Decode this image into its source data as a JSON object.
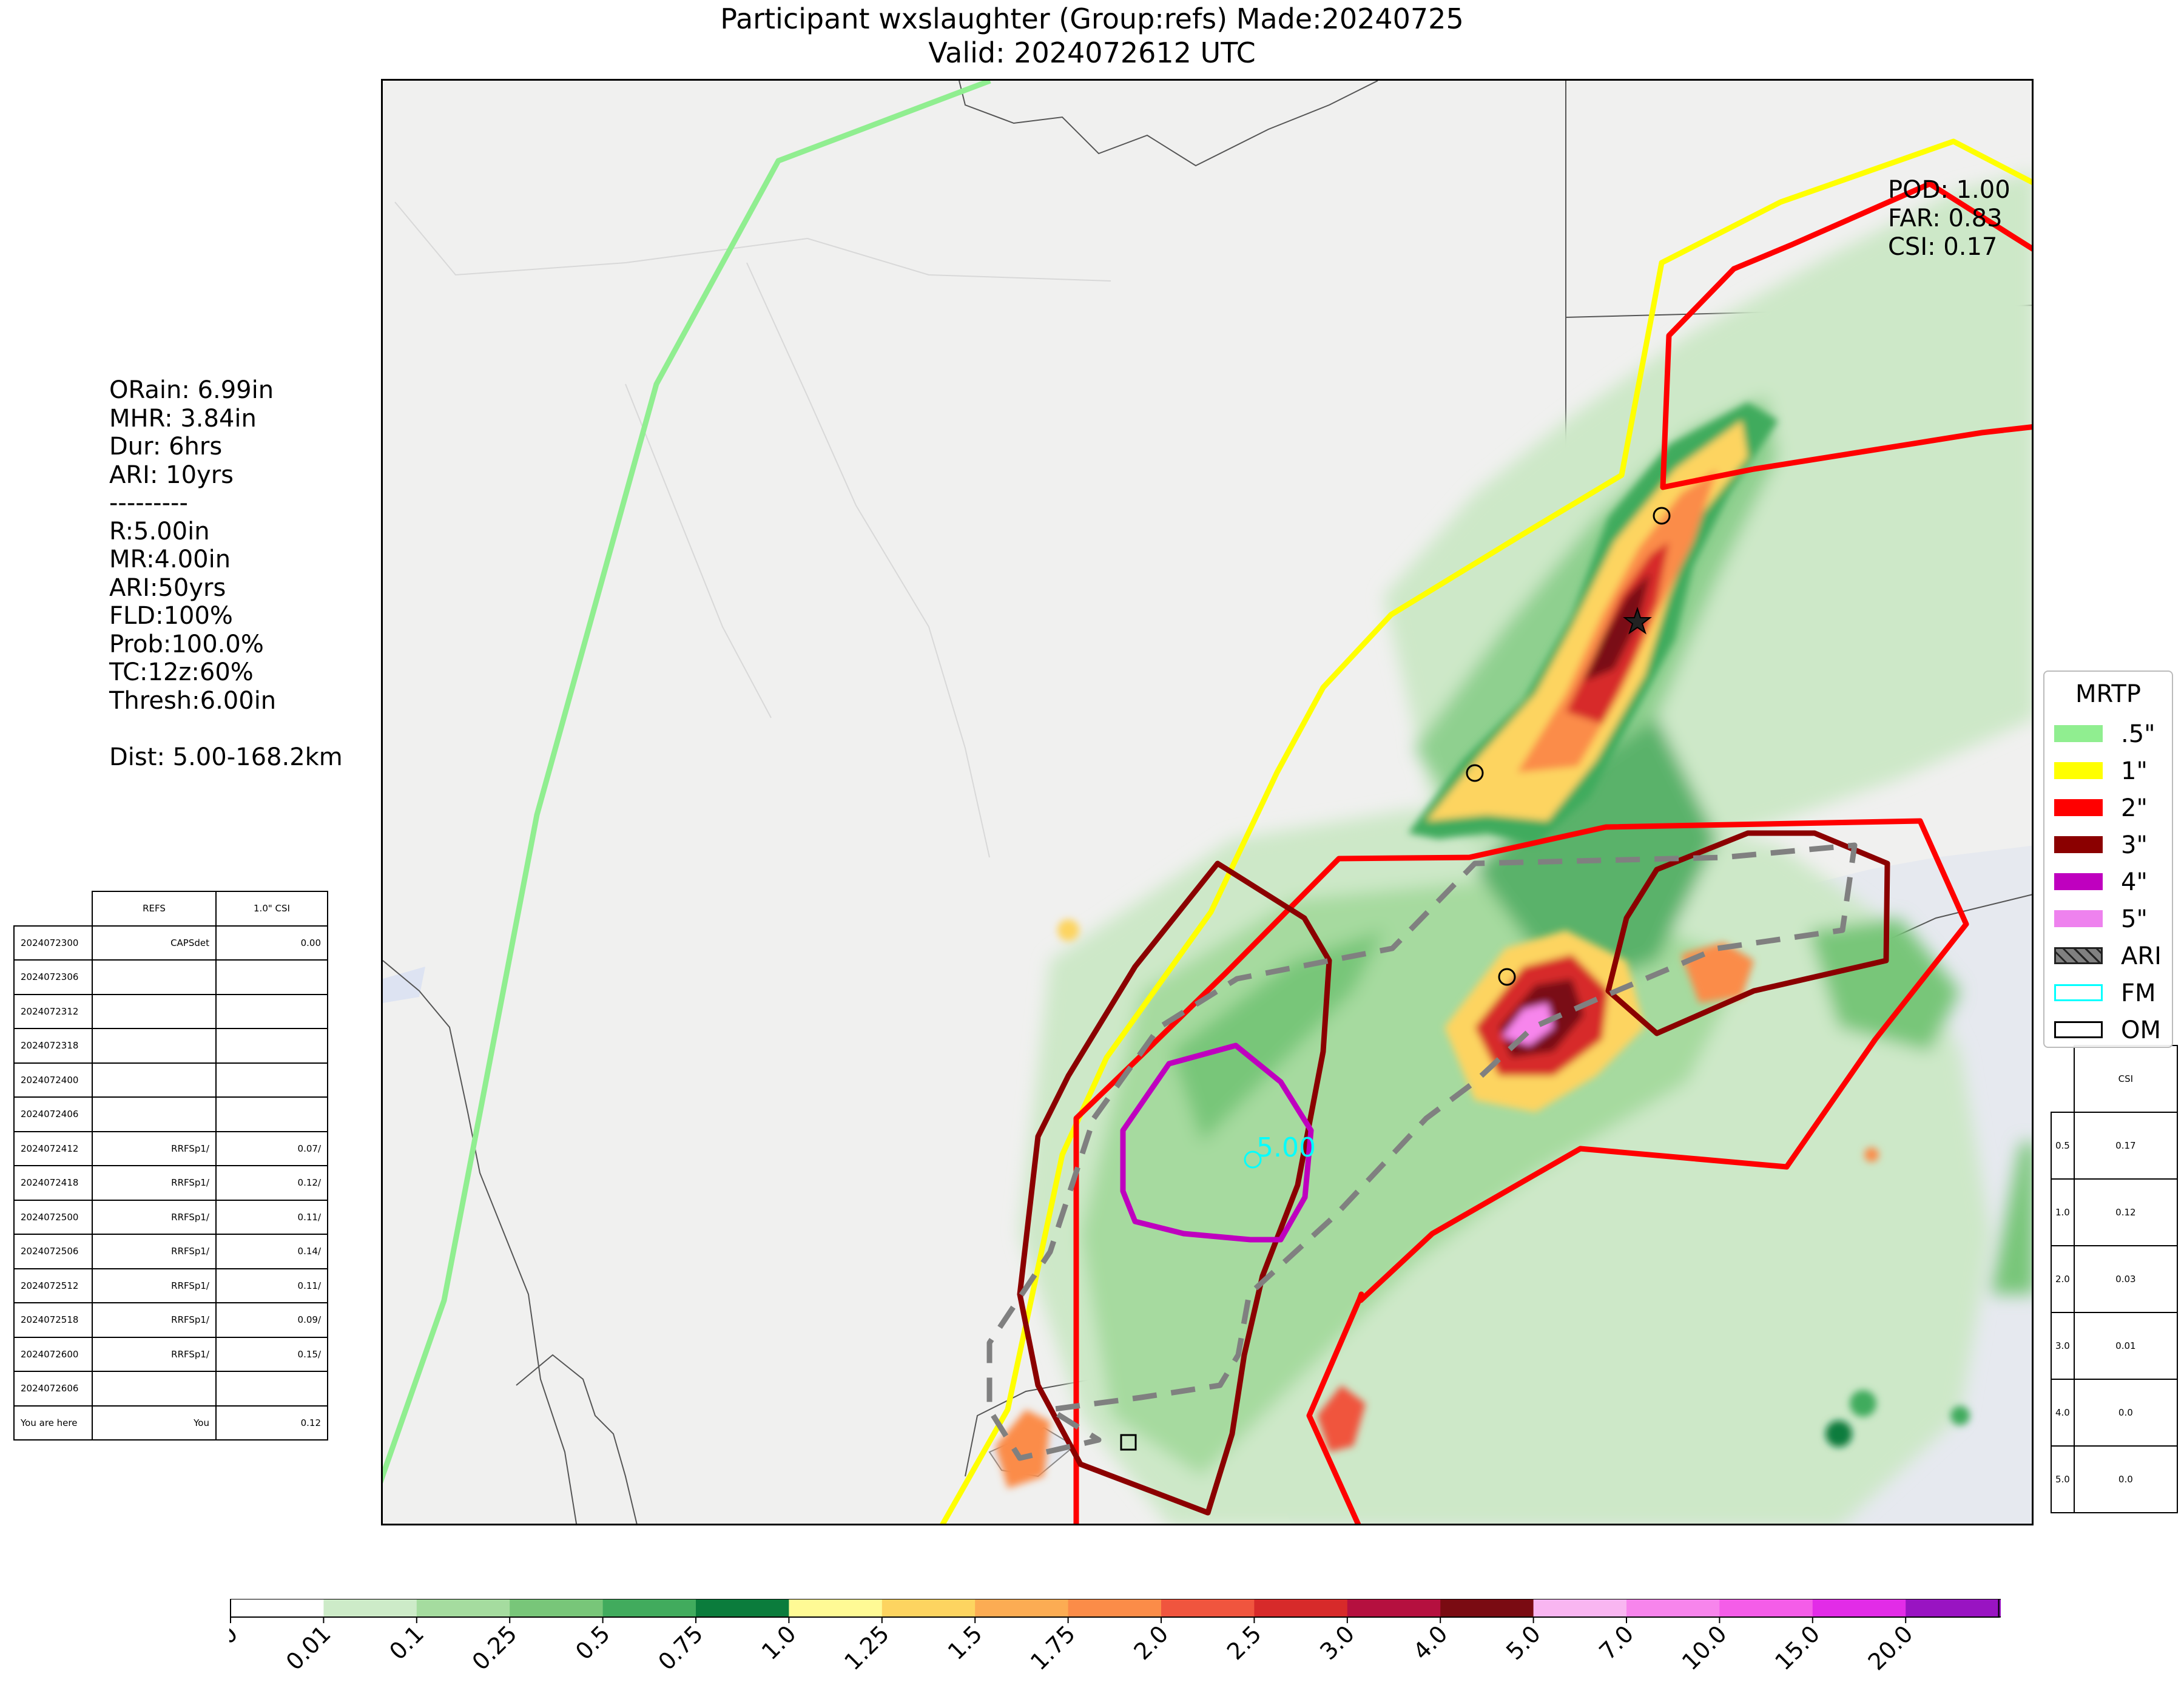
{
  "title": {
    "line1": "Participant wxslaughter (Group:refs) Made:20240725",
    "line2": "Valid: 2024072612 UTC"
  },
  "stats": {
    "orain": "ORain: 6.99in",
    "mhr": "MHR: 3.84in",
    "dur": "Dur: 6hrs",
    "ari": "ARI: 10yrs",
    "sep": "---------",
    "r": "R:5.00in",
    "mr": "MR:4.00in",
    "ari2": "ARI:50yrs",
    "fld": "FLD:100%",
    "prob": "Prob:100.0%",
    "tc": "TC:12z:60%",
    "thresh": "Thresh:6.00in",
    "dist": "Dist: 5.00-168.2km"
  },
  "score": {
    "pod": "POD: 1.00",
    "far": "FAR: 0.83",
    "csi": "CSI: 0.17"
  },
  "runs_table": {
    "header": [
      "",
      "REFS",
      "1.0\" CSI"
    ],
    "rows": [
      [
        "2024072300",
        "CAPSdet",
        "0.00"
      ],
      [
        "2024072306",
        "",
        ""
      ],
      [
        "2024072312",
        "",
        ""
      ],
      [
        "2024072318",
        "",
        ""
      ],
      [
        "2024072400",
        "",
        ""
      ],
      [
        "2024072406",
        "",
        ""
      ],
      [
        "2024072412",
        "RRFSp1/",
        "0.07/"
      ],
      [
        "2024072418",
        "RRFSp1/",
        "0.12/"
      ],
      [
        "2024072500",
        "RRFSp1/",
        "0.11/"
      ],
      [
        "2024072506",
        "RRFSp1/",
        "0.14/"
      ],
      [
        "2024072512",
        "RRFSp1/",
        "0.11/"
      ],
      [
        "2024072518",
        "RRFSp1/",
        "0.09/"
      ],
      [
        "2024072600",
        "RRFSp1/",
        "0.15/"
      ],
      [
        "2024072606",
        "",
        ""
      ],
      [
        "You are here",
        "You",
        "0.12"
      ]
    ]
  },
  "csi_table": {
    "header": "CSI",
    "rows": [
      [
        "0.5",
        "0.17"
      ],
      [
        "1.0",
        "0.12"
      ],
      [
        "2.0",
        "0.03"
      ],
      [
        "3.0",
        "0.01"
      ],
      [
        "4.0",
        "0.0"
      ],
      [
        "5.0",
        "0.0"
      ]
    ]
  },
  "map": {
    "contour_label": "5.00",
    "colors": {
      "c05": "#90ee90",
      "c1": "#ffff00",
      "c2": "#ff0000",
      "c3": "#8b0000",
      "c4": "#bf00bf",
      "c5": "#ee82ee",
      "ari": "#808080",
      "fm": "#00ffff",
      "land": "#f0f0ef",
      "water": "#e6e9ef"
    }
  },
  "legend": {
    "title": "MRTP",
    "items": [
      {
        "label": ".5\"",
        "color": "#90ee90"
      },
      {
        "label": "1\"",
        "color": "#ffff00"
      },
      {
        "label": "2\"",
        "color": "#ff0000"
      },
      {
        "label": "3\"",
        "color": "#8b0000"
      },
      {
        "label": "4\"",
        "color": "#bf00bf"
      },
      {
        "label": "5\"",
        "color": "#ee82ee"
      },
      {
        "label": "ARI",
        "color": "#808080"
      },
      {
        "label": "FM",
        "color": "#00ffff"
      },
      {
        "label": "OM",
        "color": "#ffffff"
      }
    ]
  },
  "colorbar": {
    "ticks": [
      "0.0",
      "0.01",
      "0.1",
      "0.25",
      "0.5",
      "0.75",
      "1.0",
      "1.25",
      "1.5",
      "1.75",
      "2.0",
      "2.5",
      "3.0",
      "4.0",
      "5.0",
      "7.0",
      "10.0",
      "15.0",
      "20.0"
    ],
    "colors": [
      "#ffffff",
      "#cdebc8",
      "#a5dc9f",
      "#78c679",
      "#41ab5d",
      "#0b7c3c",
      "#fffa95",
      "#fdd460",
      "#fcac53",
      "#fb8c48",
      "#f0553e",
      "#d72a2a",
      "#b5103f",
      "#7a0b12",
      "#f9b6f1",
      "#f785ec",
      "#f45de8",
      "#e22ce7",
      "#9914c2"
    ]
  }
}
